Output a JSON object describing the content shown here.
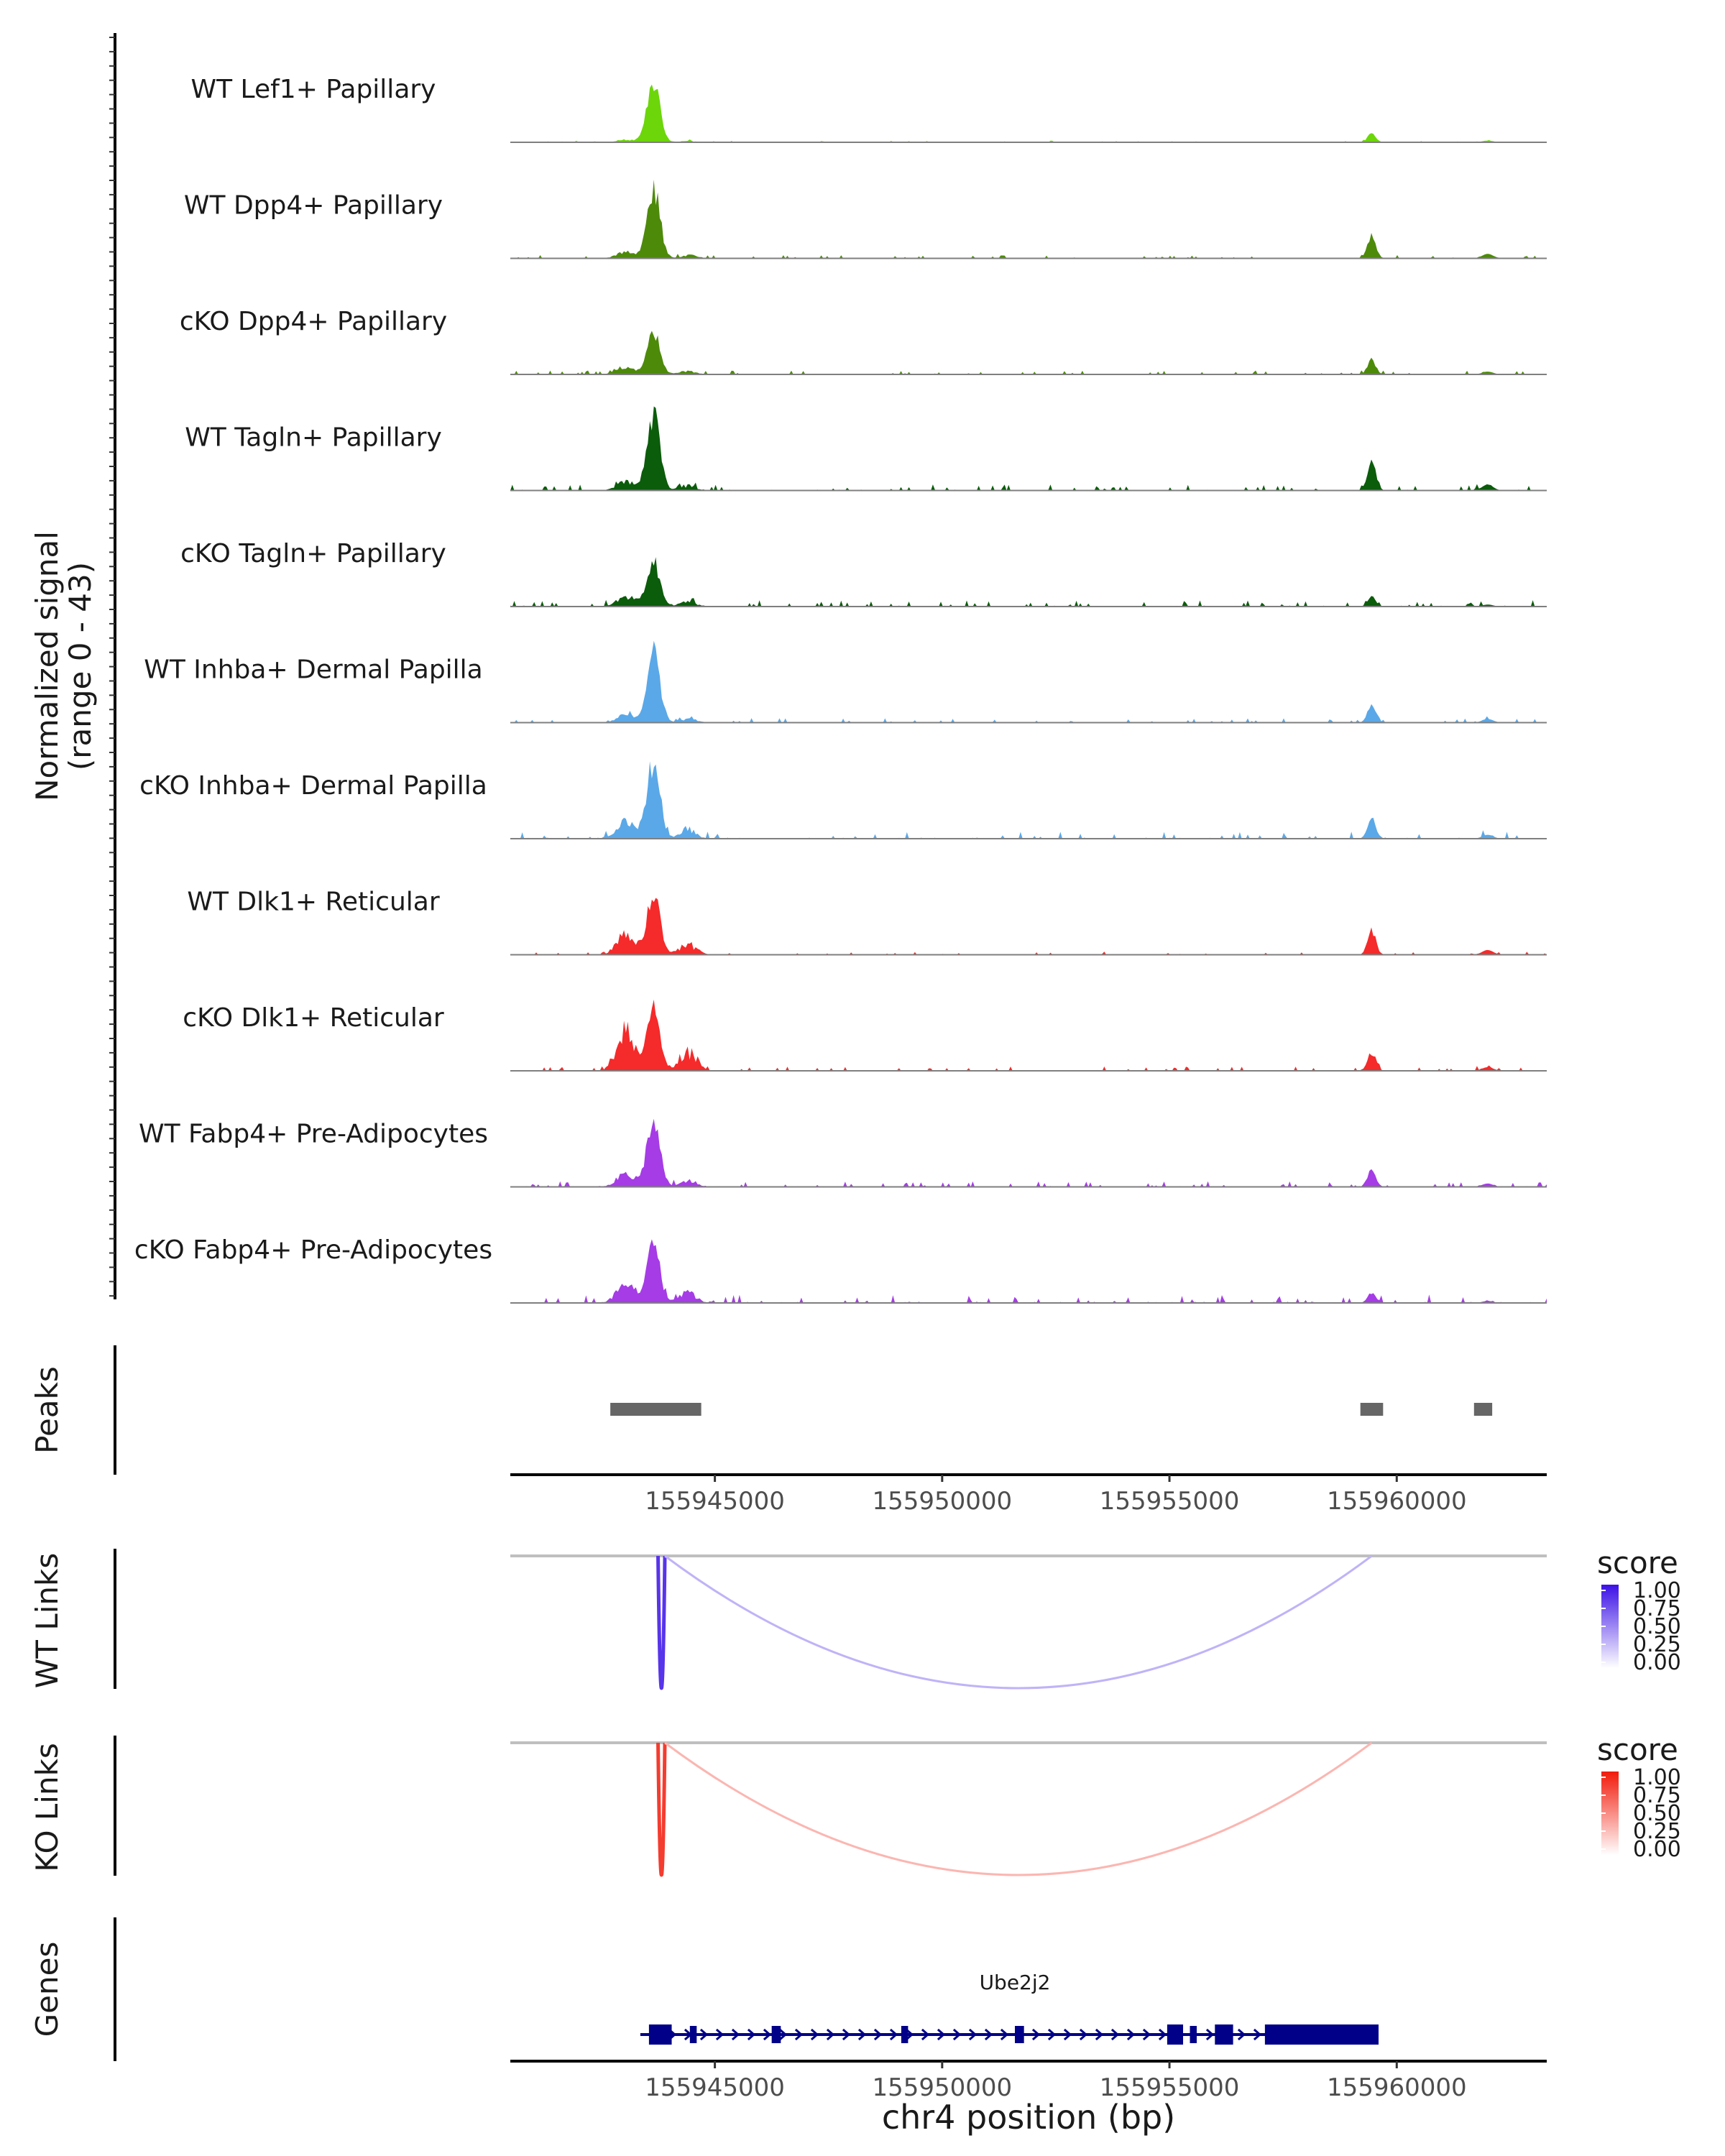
{
  "chart_data": {
    "type": "coverage_plot",
    "x_axis": {
      "label": "chr4 position (bp)",
      "range": [
        155940500,
        155963300
      ],
      "ticks": [
        155945000,
        155950000,
        155955000,
        155960000
      ],
      "tick_labels": [
        "155945000",
        "155950000",
        "155955000",
        "155960000"
      ]
    },
    "coverage": {
      "ylabel_line1": "Normalized signal",
      "ylabel_line2": "(range 0 - 43)",
      "ylim": [
        0,
        43
      ],
      "tracks": [
        {
          "name": "WT Lef1+ Papillary",
          "color": "#6cd60a",
          "peak1": 43,
          "peak2": 6,
          "side": 2,
          "bg": 0.6
        },
        {
          "name": "WT Dpp4+ Papillary",
          "color": "#4d8a0a",
          "peak1": 50,
          "peak2": 16,
          "side": 5,
          "bg": 1.2
        },
        {
          "name": "cKO Dpp4+ Papillary",
          "color": "#4d8a0a",
          "peak1": 28,
          "peak2": 10,
          "side": 5,
          "bg": 1.4
        },
        {
          "name": "WT Tagln+ Papillary",
          "color": "#0b5c0b",
          "peak1": 53,
          "peak2": 21,
          "side": 7,
          "bg": 2.2
        },
        {
          "name": "cKO Tagln+ Papillary",
          "color": "#0b5c0b",
          "peak1": 32,
          "peak2": 7,
          "side": 8,
          "bg": 2.4
        },
        {
          "name": "WT Inhba+ Dermal Papilla",
          "color": "#5aa8e8",
          "peak1": 49,
          "peak2": 13,
          "side": 6,
          "bg": 1.6
        },
        {
          "name": "cKO Inhba+ Dermal Papilla",
          "color": "#5aa8e8",
          "peak1": 55,
          "peak2": 14,
          "side": 14,
          "bg": 2.6
        },
        {
          "name": "WT Dlk1+ Reticular",
          "color": "#f52a2a",
          "peak1": 42,
          "peak2": 17,
          "side": 16,
          "bg": 1.2
        },
        {
          "name": "cKO Dlk1+ Reticular",
          "color": "#f52a2a",
          "peak1": 42,
          "peak2": 13,
          "side": 32,
          "bg": 1.6
        },
        {
          "name": "WT Fabp4+ Pre-Adipocytes",
          "color": "#a53ce6",
          "peak1": 50,
          "peak2": 12,
          "side": 10,
          "bg": 2.0
        },
        {
          "name": "cKO Fabp4+ Pre-Adipocytes",
          "color": "#a53ce6",
          "peak1": 41,
          "peak2": 7,
          "side": 15,
          "bg": 3.0
        }
      ]
    },
    "peaks": {
      "label": "Peaks",
      "regions": [
        [
          155942700,
          155944700
        ],
        [
          155959200,
          155959700
        ],
        [
          155961700,
          155962100
        ]
      ]
    },
    "links": [
      {
        "label": "WT Links",
        "legend_title": "score",
        "legend_ticks": [
          "1.00",
          "0.75",
          "0.50",
          "0.25",
          "0.00"
        ],
        "color_high": "#3b10e6",
        "arcs": [
          {
            "start": 155943750,
            "end": 155943900,
            "score": 0.85
          },
          {
            "start": 155943900,
            "end": 155959450,
            "score": 0.32
          }
        ]
      },
      {
        "label": "KO Links",
        "legend_title": "score",
        "legend_ticks": [
          "1.00",
          "0.75",
          "0.50",
          "0.25",
          "0.00"
        ],
        "color_high": "#f21a0a",
        "arcs": [
          {
            "start": 155943750,
            "end": 155943900,
            "score": 0.85
          },
          {
            "start": 155943900,
            "end": 155959450,
            "score": 0.32
          }
        ]
      }
    ],
    "genes": {
      "label": "Genes",
      "color": "#000088",
      "items": [
        {
          "name": "Ube2j2",
          "start": 155943550,
          "end": 155959600,
          "strand": "+",
          "exons": [
            [
              155943550,
              155944050
            ],
            [
              155944450,
              155944600
            ],
            [
              155946250,
              155946450
            ],
            [
              155949100,
              155949250
            ],
            [
              155951600,
              155951800
            ],
            [
              155954950,
              155955300
            ],
            [
              155955450,
              155955600
            ],
            [
              155956000,
              155956400
            ],
            [
              155957100,
              155959600
            ]
          ]
        }
      ]
    }
  }
}
